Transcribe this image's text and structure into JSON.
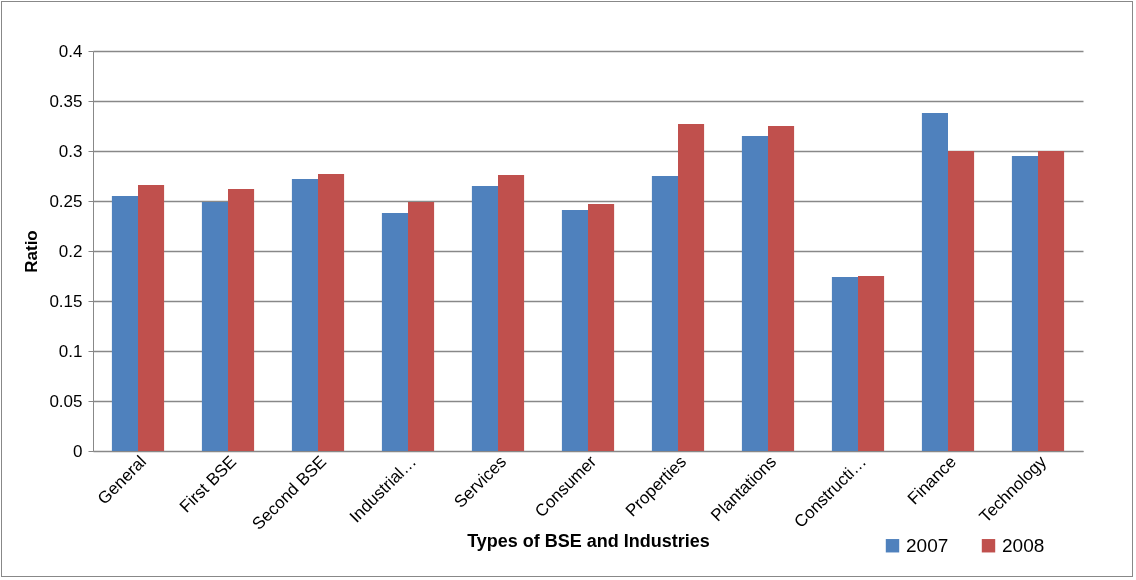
{
  "chart_data": {
    "type": "bar",
    "xlabel": "Types of BSE and Industries",
    "ylabel": "Ratio",
    "categories": [
      "General",
      "First BSE",
      "Second BSE",
      "Industrial…",
      "Services",
      "Consumer",
      "Properties",
      "Plantations",
      "Constructi…",
      "Finance",
      "Technology"
    ],
    "series": [
      {
        "name": "2007",
        "color": "#4f81bd",
        "values": [
          0.255,
          0.249,
          0.272,
          0.238,
          0.265,
          0.241,
          0.275,
          0.315,
          0.174,
          0.338,
          0.295
        ]
      },
      {
        "name": "2008",
        "color": "#c0504d",
        "values": [
          0.266,
          0.262,
          0.277,
          0.249,
          0.276,
          0.247,
          0.327,
          0.325,
          0.175,
          0.3,
          0.3
        ]
      }
    ],
    "ylim": [
      0,
      0.4
    ],
    "yticks": [
      0,
      0.05,
      0.1,
      0.15,
      0.2,
      0.25,
      0.3,
      0.35,
      0.4
    ],
    "grid": "y",
    "legend": "bottom right"
  }
}
